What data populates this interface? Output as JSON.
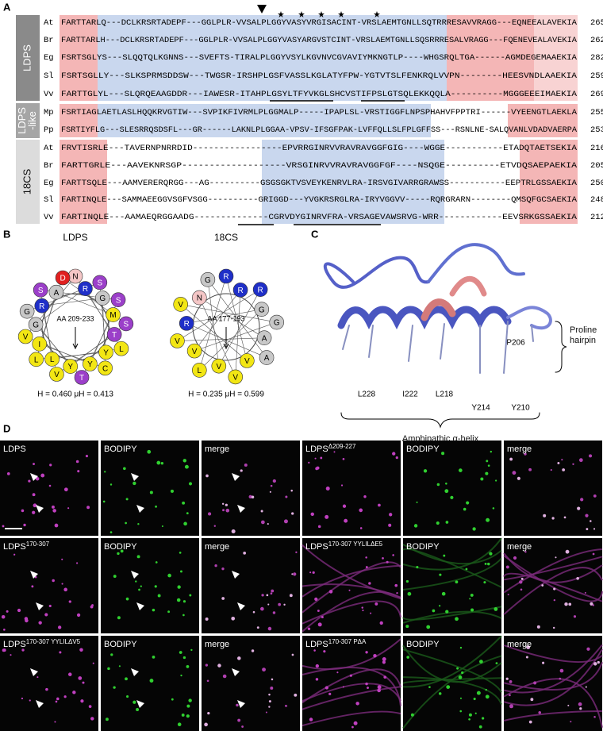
{
  "panel_labels": [
    "A",
    "B",
    "C",
    "D"
  ],
  "alignment": {
    "groups": [
      {
        "label": [
          "LDPS"
        ],
        "rows": [
          {
            "species": "At",
            "sequence": "FARTTARLQ---DCLKRSRTADEPF---GGLPLR-VVSALPLGGYVASYVRGISACINT-VRSLAEMTGNLLSQTRRRESAVVRAGG---EQNEEALAVEKIA",
            "end": 265
          },
          {
            "species": "Br",
            "sequence": "FARTTARLH---DCLKRSRTADEPF---GGLPLR-VVSALPLGGYVASYARGVSTCINT-VRSLAEMTGNLLSQSRRRESALVRAGG---FQENEVEALAVEKIA",
            "end": 262
          },
          {
            "species": "Eg",
            "sequence": "FSRTSGLYS---SLQQTQLKGNNS---SVEFTS-TIRALPLGGYVSYLKGVNVCGVAVIYMKNGTLP----WHGSRQLTGA------AGMDEGEMAAEKIA",
            "end": 282
          },
          {
            "species": "Sl",
            "sequence": "FSRTSGLLY---SLKSPRMSDDSW---TWGSR-IRSHPLGSFVASSLKGLATYFPW-YGTVTSLFENKRQLVVPN--------HEESVNDLAAEKIA",
            "end": 259
          },
          {
            "species": "Vv",
            "sequence": "FARTTGLYL---SLQRQEAAGDDR---IAWESR-ITAHPLGSYLTFYVKGLSHCVSTIFPSLGTSQLEKKQQLA----------MGGGEEEIMAEKIA",
            "end": 269
          }
        ]
      },
      {
        "label": [
          "LDPS",
          "-like"
        ],
        "rows": [
          {
            "species": "Mp",
            "sequence": "FSRTIAGLAETLASLHQQKRVGTIW---SVPIKFIVRMLPLGGMALP-----IPAPLSL-VRSTIGGFLNPSPHAHVFPPTRI------VYEENGTLAEKLA",
            "end": 255
          },
          {
            "species": "Pp",
            "sequence": "FSRTIYFLG---SLESRRQSDSFL---GR------LAKNLPLGGAA-VPSV-IFSGFPAK-LVFFQLLSLFPLGFFSS---RSNLNE-SALQVANLVDADVAERPA",
            "end": 253
          }
        ]
      },
      {
        "label": [
          "18CS"
        ],
        "rows": [
          {
            "species": "At",
            "sequence": "FRVTISRLE---TAVERNPNRRDID-----------------EPVRRGINRVVRAVRAVGGFGIG----WGGE-----------ETADQTAETSEKIA",
            "end": 216
          },
          {
            "species": "Br",
            "sequence": "FARTTGRLE---AAVEKNRSGP-------------------VRSGINRVVRAVRAVGGFGF----NSQGE----------ETVDQSAEPAEKIA",
            "end": 205
          },
          {
            "species": "Eg",
            "sequence": "FARTTSQLE---AAMVERERQRGG---AG----------GSGSGKTVSVEYKENRVLRA-IRSVGIVARRGRAWSS-----------EEPTRLGSSAEKIA",
            "end": 250
          },
          {
            "species": "Sl",
            "sequence": "FARTINQLE---SAMMAEEGGVSGFVSGG----------GRIGGD---YVGKRSRGLRA-IRYVGGVV-----RQRGRARN--------QMSQFGCSAEKIA",
            "end": 248
          },
          {
            "species": "Vv",
            "sequence": "FARTINQLE---AAMAEQRGGAADG--------------CGRVDYGINRVFRA-VRSAGEVAWSRVG-WRR------------EEVSRKGSSAEKIA",
            "end": 212
          }
        ]
      }
    ]
  },
  "helical_wheels": [
    {
      "title": "LDPS",
      "range": "AA 209-233",
      "stats": "H = 0.460  μH = 0.413",
      "residues": [
        {
          "aa": "N",
          "color": "#f4c6c6"
        },
        {
          "aa": "R",
          "color": "#1f2fc8"
        },
        {
          "aa": "S",
          "color": "#9b3fc9"
        },
        {
          "aa": "G",
          "color": "#c8c8c8"
        },
        {
          "aa": "S",
          "color": "#9b3fc9"
        },
        {
          "aa": "M",
          "color": "#f2e614"
        },
        {
          "aa": "S",
          "color": "#9b3fc9"
        },
        {
          "aa": "T",
          "color": "#9b3fc9"
        },
        {
          "aa": "L",
          "color": "#f2e614"
        },
        {
          "aa": "Y",
          "color": "#f2e614"
        },
        {
          "aa": "C",
          "color": "#f2e614"
        },
        {
          "aa": "Y",
          "color": "#f2e614"
        },
        {
          "aa": "T",
          "color": "#9b3fc9"
        },
        {
          "aa": "Y",
          "color": "#f2e614"
        },
        {
          "aa": "V",
          "color": "#f2e614"
        },
        {
          "aa": "L",
          "color": "#f2e614"
        },
        {
          "aa": "L",
          "color": "#f2e614"
        },
        {
          "aa": "I",
          "color": "#f2e614"
        },
        {
          "aa": "V",
          "color": "#f2e614"
        },
        {
          "aa": "G",
          "color": "#c8c8c8"
        },
        {
          "aa": "G",
          "color": "#c8c8c8"
        },
        {
          "aa": "R",
          "color": "#1f2fc8"
        },
        {
          "aa": "S",
          "color": "#9b3fc9"
        },
        {
          "aa": "A",
          "color": "#c8c8c8"
        },
        {
          "aa": "D",
          "color": "#e02020"
        }
      ]
    },
    {
      "title": "18CS",
      "range": "AA 177-193",
      "stats": "H = 0.235  μH = 0.599",
      "residues": [
        {
          "aa": "R",
          "color": "#1f2fc8"
        },
        {
          "aa": "R",
          "color": "#1f2fc8"
        },
        {
          "aa": "R",
          "color": "#1f2fc8"
        },
        {
          "aa": "G",
          "color": "#c8c8c8"
        },
        {
          "aa": "G",
          "color": "#c8c8c8"
        },
        {
          "aa": "A",
          "color": "#c8c8c8"
        },
        {
          "aa": "A",
          "color": "#c8c8c8"
        },
        {
          "aa": "V",
          "color": "#f2e614"
        },
        {
          "aa": "V",
          "color": "#f2e614"
        },
        {
          "aa": "V",
          "color": "#f2e614"
        },
        {
          "aa": "L",
          "color": "#f2e614"
        },
        {
          "aa": "V",
          "color": "#f2e614"
        },
        {
          "aa": "V",
          "color": "#f2e614"
        },
        {
          "aa": "R",
          "color": "#1f2fc8"
        },
        {
          "aa": "V",
          "color": "#f2e614"
        },
        {
          "aa": "N",
          "color": "#f4c6c6"
        },
        {
          "aa": "G",
          "color": "#c8c8c8"
        }
      ]
    }
  ],
  "structure": {
    "residue_labels": [
      "P206",
      "L228",
      "I222",
      "L218",
      "Y214",
      "Y210"
    ],
    "hairpin_label": "Proline hairpin",
    "helix_label": "Amphipathic α-helix"
  },
  "microscopy": {
    "rows": [
      [
        {
          "label": "LDPS"
        },
        {
          "label": "BODIPY"
        },
        {
          "label": "merge"
        },
        {
          "label": "LDPS",
          "sup": "Δ209-227"
        },
        {
          "label": "BODIPY"
        },
        {
          "label": "merge"
        }
      ],
      [
        {
          "label": "LDPS",
          "sup": "170-307"
        },
        {
          "label": "BODIPY"
        },
        {
          "label": "merge"
        },
        {
          "label": "LDPS",
          "sup": "170-307 YYLILΔE5"
        },
        {
          "label": "BODIPY"
        },
        {
          "label": "merge"
        }
      ],
      [
        {
          "label": "LDPS",
          "sup": "170-307 YYLILΔV5"
        },
        {
          "label": "BODIPY"
        },
        {
          "label": "merge"
        },
        {
          "label": "LDPS",
          "sup": "170-307 PΔA"
        },
        {
          "label": "BODIPY"
        },
        {
          "label": "merge"
        }
      ]
    ]
  }
}
